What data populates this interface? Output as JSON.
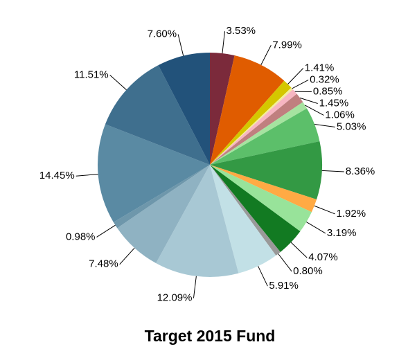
{
  "chart_data": {
    "type": "pie",
    "title": "Target 2015 Fund",
    "values": [
      3.53,
      7.99,
      1.41,
      0.32,
      0.85,
      1.45,
      1.06,
      5.03,
      8.36,
      1.92,
      3.19,
      4.07,
      0.8,
      5.91,
      12.09,
      7.48,
      0.98,
      14.45,
      11.51,
      7.6
    ],
    "value_labels": [
      "3.53%",
      "7.99%",
      "1.41%",
      "0.32%",
      "0.85%",
      "1.45%",
      "1.06%",
      "5.03%",
      "8.36%",
      "1.92%",
      "3.19%",
      "4.07%",
      "0.80%",
      "5.91%",
      "12.09%",
      "7.48%",
      "0.98%",
      "14.45%",
      "11.51%",
      "7.60%"
    ],
    "colors": [
      "#7b2a3b",
      "#e05c00",
      "#d4c700",
      "#f2ee9a",
      "#f7b6c2",
      "#c07f7f",
      "#a6e3a0",
      "#5cbf6a",
      "#339944",
      "#ffaa44",
      "#98e39a",
      "#127a22",
      "#999999",
      "#c2e0e6",
      "#a8c8d4",
      "#8fb2c2",
      "#6e97ab",
      "#5a8aa3",
      "#3f6f8e",
      "#22527a"
    ]
  }
}
